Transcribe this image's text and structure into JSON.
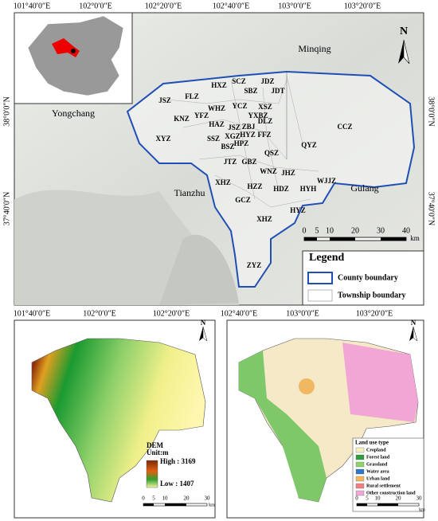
{
  "top_map": {
    "lon_labels": [
      "101°40′0″E",
      "102°0′0″E",
      "102°20′0″E",
      "102°40′0″E",
      "103°0′0″E",
      "103°20′0″E"
    ],
    "lat_labels": [
      "38°0′0″N",
      "37°40′0″N"
    ],
    "places": [
      "Minqing",
      "Yongchang",
      "Tianzhu",
      "Gulang"
    ],
    "townships": [
      "HXZ",
      "SCZ",
      "JDZ",
      "SBZ",
      "JDT",
      "FLZ",
      "JSZ",
      "WHZ",
      "YCZ",
      "XSZ",
      "YFZ",
      "YXBZ",
      "KNZ",
      "HAZ",
      "JSZ",
      "ZBJ",
      "DLZ",
      "XGZ",
      "SSZ",
      "HPZ",
      "HYZ",
      "FFZ",
      "BSZ",
      "QSZ",
      "XYZ",
      "QYZ",
      "JTZ",
      "GBZ",
      "WNZ",
      "JHZ",
      "HZZ",
      "HDZ",
      "HYH",
      "WJJZ",
      "XHZ",
      "GCZ",
      "XHZ",
      "HYZ",
      "ZYZ",
      "CCZ"
    ],
    "north": "N",
    "scale": [
      "0",
      "5",
      "10",
      "20",
      "30",
      "40"
    ],
    "scale_unit": "km",
    "legend": {
      "title": "Legend",
      "items": [
        "County boundary",
        "Township boundary"
      ]
    }
  },
  "dem_map": {
    "lon_labels": [
      "101°40′0″E",
      "102°0′0″E",
      "102°20′0″E"
    ],
    "north": "N",
    "legend": {
      "title": "DEM",
      "unit": "Unit:m",
      "high": "High : 3169",
      "low": "Low : 1407"
    },
    "scale": [
      "0",
      "5",
      "10",
      "20",
      "30"
    ],
    "scale_unit": "km"
  },
  "landuse_map": {
    "lon_labels": [
      "102°40′0″E",
      "103°0′0″E",
      "103°20′0″E"
    ],
    "north": "N",
    "legend": {
      "title": "Land use type",
      "items": [
        "Cropland",
        "Forest land",
        "Grassland",
        "Water area",
        "Urban land",
        "Rural settlement",
        "Other construction land"
      ]
    },
    "scale": [
      "0",
      "5",
      "10",
      "20",
      "30"
    ],
    "scale_unit": "km"
  }
}
